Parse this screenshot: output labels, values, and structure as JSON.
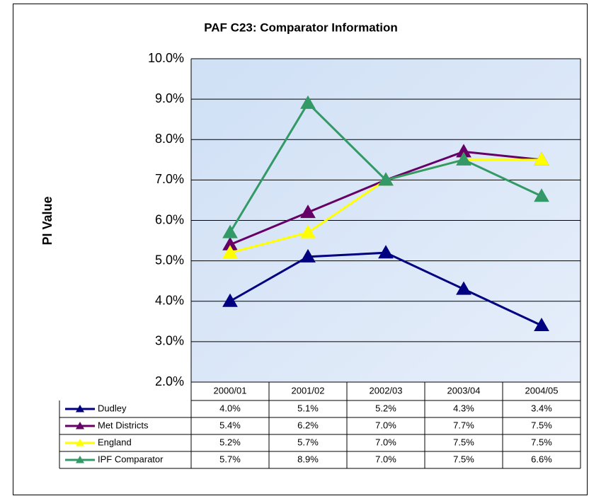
{
  "chart_data": {
    "type": "line",
    "title": "PAF C23: Comparator Information",
    "y_label": "PI Value",
    "categories": [
      "2000/01",
      "2001/02",
      "2002/03",
      "2003/04",
      "2004/05"
    ],
    "series": [
      {
        "name": "Dudley",
        "color": "#000080",
        "values": [
          4.0,
          5.1,
          5.2,
          4.3,
          3.4
        ],
        "value_labels": [
          "4.0%",
          "5.1%",
          "5.2%",
          "4.3%",
          "3.4%"
        ]
      },
      {
        "name": "Met Districts",
        "color": "#660066",
        "values": [
          5.4,
          6.2,
          7.0,
          7.7,
          7.5
        ],
        "value_labels": [
          "5.4%",
          "6.2%",
          "7.0%",
          "7.7%",
          "7.5%"
        ]
      },
      {
        "name": "England",
        "color": "#ffff00",
        "values": [
          5.2,
          5.7,
          7.0,
          7.5,
          7.5
        ],
        "value_labels": [
          "5.2%",
          "5.7%",
          "7.0%",
          "7.5%",
          "7.5%"
        ]
      },
      {
        "name": "IPF Comparator",
        "color": "#339966",
        "values": [
          5.7,
          8.9,
          7.0,
          7.5,
          6.6
        ],
        "value_labels": [
          "5.7%",
          "8.9%",
          "7.0%",
          "7.5%",
          "6.6%"
        ]
      }
    ],
    "ylim": [
      2,
      10
    ],
    "yticks": [
      {
        "value": 2,
        "label": "2.0%"
      },
      {
        "value": 3,
        "label": "3.0%"
      },
      {
        "value": 4,
        "label": "4.0%"
      },
      {
        "value": 5,
        "label": "5.0%"
      },
      {
        "value": 6,
        "label": "6.0%"
      },
      {
        "value": 7,
        "label": "7.0%"
      },
      {
        "value": 8,
        "label": "8.0%"
      },
      {
        "value": 9,
        "label": "9.0%"
      },
      {
        "value": 10,
        "label": "10.0%"
      }
    ],
    "grid": true
  }
}
